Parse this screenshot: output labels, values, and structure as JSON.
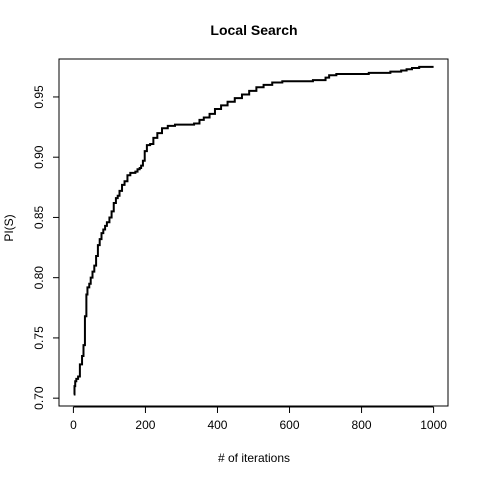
{
  "chart_data": {
    "type": "line",
    "title": "Local Search",
    "xlabel": "# of iterations",
    "ylabel": "PI(S)",
    "xlim": [
      -40,
      1040
    ],
    "ylim": [
      0.6935,
      0.9815
    ],
    "x_ticks": [
      0,
      200,
      400,
      600,
      800,
      1000
    ],
    "x_tick_labels": [
      "0",
      "200",
      "400",
      "600",
      "800",
      "1000"
    ],
    "y_ticks": [
      0.7,
      0.75,
      0.8,
      0.85,
      0.9,
      0.95
    ],
    "y_tick_labels": [
      "0.70",
      "0.75",
      "0.80",
      "0.85",
      "0.90",
      "0.95"
    ],
    "grid": false,
    "legend": false,
    "series": [
      {
        "color": "#000000",
        "x": [
          1,
          3,
          5,
          8,
          13,
          18,
          24,
          28,
          32,
          36,
          39,
          44,
          48,
          53,
          58,
          63,
          68,
          73,
          78,
          83,
          88,
          93,
          100,
          106,
          112,
          118,
          123,
          128,
          135,
          142,
          150,
          158,
          165,
          172,
          178,
          184,
          188,
          193,
          198,
          204,
          213,
          222,
          233,
          246,
          262,
          282,
          306,
          335,
          350,
          362,
          378,
          393,
          410,
          428,
          448,
          468,
          488,
          508,
          528,
          552,
          580,
          610,
          640,
          665,
          690,
          700,
          710,
          730,
          760,
          790,
          820,
          850,
          880,
          910,
          925,
          940,
          960,
          980,
          1000
        ],
        "y": [
          0.703,
          0.71,
          0.714,
          0.716,
          0.718,
          0.728,
          0.735,
          0.744,
          0.768,
          0.786,
          0.792,
          0.795,
          0.8,
          0.805,
          0.81,
          0.818,
          0.827,
          0.832,
          0.837,
          0.84,
          0.843,
          0.846,
          0.85,
          0.855,
          0.862,
          0.866,
          0.868,
          0.872,
          0.877,
          0.88,
          0.885,
          0.887,
          0.887,
          0.888,
          0.89,
          0.891,
          0.893,
          0.897,
          0.905,
          0.91,
          0.911,
          0.916,
          0.92,
          0.924,
          0.926,
          0.927,
          0.927,
          0.928,
          0.931,
          0.933,
          0.936,
          0.94,
          0.943,
          0.946,
          0.949,
          0.952,
          0.955,
          0.958,
          0.96,
          0.962,
          0.963,
          0.963,
          0.963,
          0.964,
          0.964,
          0.966,
          0.968,
          0.969,
          0.969,
          0.969,
          0.97,
          0.97,
          0.971,
          0.972,
          0.973,
          0.974,
          0.975,
          0.975,
          0.975
        ]
      }
    ]
  }
}
